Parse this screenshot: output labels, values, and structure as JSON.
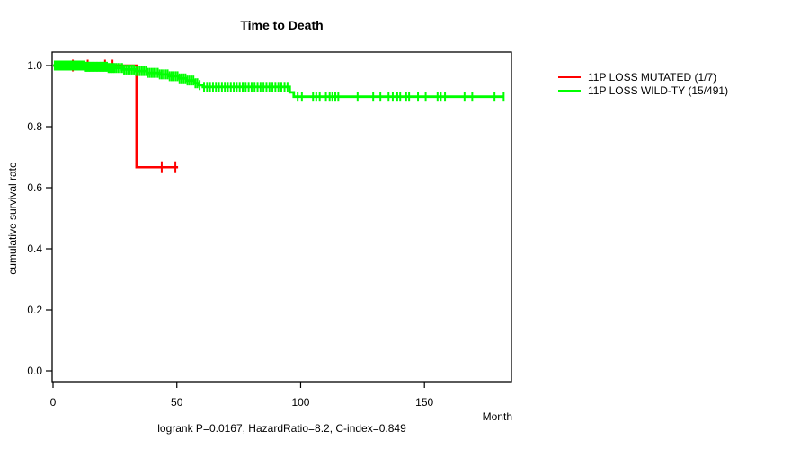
{
  "figure": {
    "title": "Time to Death",
    "annotation": "logrank P=0.0167, HazardRatio=8.2, C-index=0.849"
  },
  "chart_data": {
    "type": "line",
    "subtype": "kaplan-meier-step",
    "title": "Time to Death",
    "xlabel": "Month",
    "ylabel": "cumulative survival rate",
    "xticks": [
      0,
      50,
      100,
      150
    ],
    "yticks": [
      0.0,
      0.2,
      0.4,
      0.6,
      0.8,
      1.0
    ],
    "xlim": [
      0,
      185
    ],
    "ylim": [
      0,
      1.04
    ],
    "grid": false,
    "legend_position": "right-outside",
    "annotation": "logrank P=0.0167, HazardRatio=8.2, C-index=0.849",
    "axis_color": "#000000",
    "series": [
      {
        "name": "11P LOSS MUTATED (1/7)",
        "color": "#ff0000",
        "line_width": 2.5,
        "censor_tick_len": 13,
        "steps": [
          [
            0,
            1.0
          ],
          [
            33.7,
            1.0
          ],
          [
            33.7,
            0.667
          ],
          [
            50.5,
            0.667
          ]
        ],
        "censor_times": [
          8,
          14,
          21,
          24,
          43.9,
          49.4
        ]
      },
      {
        "name": "11P LOSS WILD-TY (15/491)",
        "color": "#00ff00",
        "line_width": 2.8,
        "censor_tick_len": 11,
        "steps": [
          [
            0,
            1.0
          ],
          [
            13,
            1.0
          ],
          [
            13,
            0.996
          ],
          [
            22,
            0.996
          ],
          [
            22,
            0.992
          ],
          [
            28,
            0.992
          ],
          [
            28,
            0.987
          ],
          [
            33,
            0.987
          ],
          [
            33,
            0.982
          ],
          [
            38,
            0.982
          ],
          [
            38,
            0.976
          ],
          [
            43,
            0.976
          ],
          [
            43,
            0.971
          ],
          [
            47,
            0.971
          ],
          [
            47,
            0.965
          ],
          [
            51,
            0.965
          ],
          [
            51,
            0.958
          ],
          [
            54,
            0.958
          ],
          [
            54,
            0.951
          ],
          [
            57,
            0.951
          ],
          [
            57,
            0.942
          ],
          [
            59,
            0.942
          ],
          [
            59,
            0.936
          ],
          [
            60.5,
            0.936
          ],
          [
            60.5,
            0.93
          ],
          [
            95.6,
            0.93
          ],
          [
            95.6,
            0.912
          ],
          [
            97.2,
            0.912
          ],
          [
            97.2,
            0.898
          ],
          [
            182,
            0.898
          ]
        ],
        "censor_times": [
          0.7,
          1.1,
          1.5,
          1.9,
          2.3,
          2.7,
          3.1,
          3.5,
          3.9,
          4.3,
          4.7,
          5.1,
          5.5,
          5.9,
          6.3,
          6.7,
          7.1,
          7.5,
          7.9,
          8.3,
          8.7,
          9.1,
          9.5,
          9.9,
          10.3,
          10.7,
          11.1,
          11.5,
          11.9,
          12.3,
          12.7,
          13.2,
          13.6,
          14.0,
          14.5,
          14.9,
          15.4,
          15.8,
          16.3,
          16.8,
          17.3,
          17.8,
          18.3,
          18.8,
          19.3,
          19.8,
          20.3,
          20.8,
          21.3,
          21.8,
          22.4,
          23.0,
          23.6,
          24.2,
          24.8,
          25.5,
          26.3,
          27.1,
          27.9,
          28.7,
          29.5,
          30.3,
          31.1,
          31.9,
          32.7,
          33.5,
          34.3,
          35.1,
          35.9,
          36.7,
          37.5,
          38.3,
          39.1,
          39.9,
          40.7,
          41.5,
          42.3,
          43.1,
          43.9,
          44.7,
          45.5,
          46.3,
          47.1,
          47.9,
          48.7,
          49.5,
          50.3,
          51.1,
          51.9,
          52.7,
          53.5,
          54.3,
          55.1,
          55.9,
          56.7,
          57.5,
          58.3,
          59.2,
          61.0,
          62.2,
          63.4,
          64.6,
          65.8,
          67.0,
          68.2,
          69.4,
          70.6,
          71.8,
          73.0,
          74.2,
          75.4,
          76.6,
          77.8,
          79.0,
          80.2,
          81.4,
          82.6,
          83.8,
          85.0,
          86.2,
          87.4,
          88.6,
          89.8,
          91.0,
          92.2,
          93.5,
          94.7,
          98.8,
          100.5,
          105.0,
          106.3,
          107.7,
          110.2,
          111.7,
          112.8,
          114.0,
          115.2,
          123.0,
          129.3,
          132.2,
          135.5,
          137.2,
          139.0,
          140.2,
          142.6,
          143.8,
          147.4,
          150.5,
          155.3,
          156.6,
          158.3,
          166.2,
          169.3,
          178.3,
          182.0
        ]
      }
    ]
  }
}
